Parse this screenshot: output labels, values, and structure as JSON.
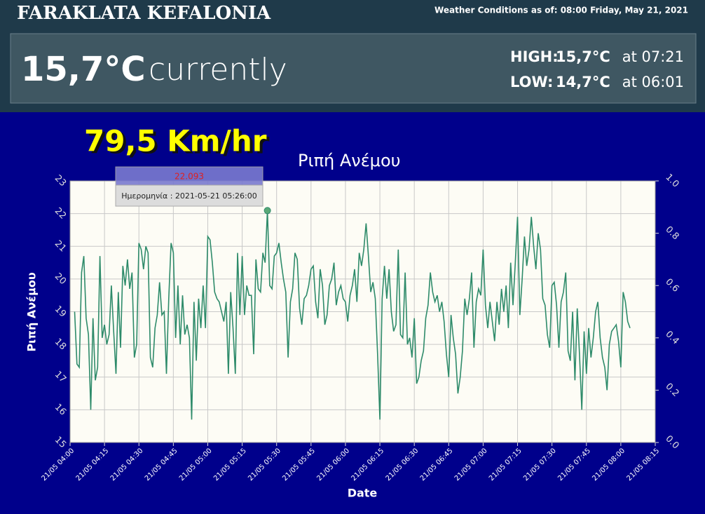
{
  "header": {
    "title": "FARAKLATA KEFALONIA",
    "as_of": "Weather Conditions as of: 08:00 Friday, May 21, 2021",
    "current_temp": "15,7°C",
    "current_label": "currently",
    "high_label": "HIGH:",
    "high_value": "15,7°C",
    "high_time": "at 07:21",
    "low_label": "LOW:",
    "low_value": "14,7°C",
    "low_time": "at 06:01"
  },
  "wind_gust": "79,5 Km/hr",
  "chart_data": {
    "type": "line",
    "title": "Ριπή Ανέμου",
    "y_label": "Ριπή Ανέμου",
    "x_label": "Date",
    "color": "#2e8b6a",
    "grid": true,
    "tooltip": {
      "value": "22.093",
      "date": "Ημερομηνία : 2021-05-21 05:26:00"
    },
    "xlim": [
      "21/05 04:00",
      "21/05 08:15"
    ],
    "xticks": [
      "21/05 04:00",
      "21/05 04:15",
      "21/05 04:30",
      "21/05 04:45",
      "21/05 05:00",
      "21/05 05:15",
      "21/05 05:30",
      "21/05 05:45",
      "21/05 06:00",
      "21/05 06:15",
      "21/05 06:30",
      "21/05 06:45",
      "21/05 07:00",
      "21/05 07:15",
      "21/05 07:30",
      "21/05 07:45",
      "21/05 08:00",
      "21/05 08:15"
    ],
    "ylim": [
      15,
      23
    ],
    "yticks": [
      15,
      16,
      17,
      18,
      19,
      20,
      21,
      22,
      23
    ],
    "y2lim": [
      0,
      1
    ],
    "y2ticks": [
      {
        "value": 0,
        "label": "0.0"
      },
      0.2,
      0.4,
      0.6,
      0.8,
      {
        "value": 1,
        "label": "1.0"
      }
    ],
    "x": [
      "21/05 04:02",
      "21/05 04:03",
      "21/05 04:04",
      "21/05 04:05",
      "21/05 04:06",
      "21/05 04:07",
      "21/05 04:08",
      "21/05 04:09",
      "21/05 04:10",
      "21/05 04:11",
      "21/05 04:12",
      "21/05 04:13",
      "21/05 04:14",
      "21/05 04:15",
      "21/05 04:16",
      "21/05 04:17",
      "21/05 04:18",
      "21/05 04:19",
      "21/05 04:20",
      "21/05 04:21",
      "21/05 04:22",
      "21/05 04:23",
      "21/05 04:24",
      "21/05 04:25",
      "21/05 04:26",
      "21/05 04:27",
      "21/05 04:28",
      "21/05 04:29",
      "21/05 04:30",
      "21/05 04:31",
      "21/05 04:32",
      "21/05 04:33",
      "21/05 04:34",
      "21/05 04:35",
      "21/05 04:36",
      "21/05 04:37",
      "21/05 04:38",
      "21/05 04:39",
      "21/05 04:40",
      "21/05 04:41",
      "21/05 04:42",
      "21/05 04:43",
      "21/05 04:44",
      "21/05 04:45",
      "21/05 04:46",
      "21/05 04:47",
      "21/05 04:48",
      "21/05 04:49",
      "21/05 04:50",
      "21/05 04:51",
      "21/05 04:52",
      "21/05 04:53",
      "21/05 04:54",
      "21/05 04:55",
      "21/05 04:56",
      "21/05 04:57",
      "21/05 04:58",
      "21/05 04:59",
      "21/05 05:00",
      "21/05 05:01",
      "21/05 05:02",
      "21/05 05:03",
      "21/05 05:04",
      "21/05 05:05",
      "21/05 05:06",
      "21/05 05:07",
      "21/05 05:08",
      "21/05 05:09",
      "21/05 05:10",
      "21/05 05:11",
      "21/05 05:12",
      "21/05 05:13",
      "21/05 05:14",
      "21/05 05:15",
      "21/05 05:16",
      "21/05 05:17",
      "21/05 05:18",
      "21/05 05:19",
      "21/05 05:20",
      "21/05 05:21",
      "21/05 05:22",
      "21/05 05:23",
      "21/05 05:24",
      "21/05 05:25",
      "21/05 05:26",
      "21/05 05:27",
      "21/05 05:28",
      "21/05 05:29",
      "21/05 05:30",
      "21/05 05:31",
      "21/05 05:32",
      "21/05 05:33",
      "21/05 05:34",
      "21/05 05:35",
      "21/05 05:36",
      "21/05 05:37",
      "21/05 05:38",
      "21/05 05:39",
      "21/05 05:40",
      "21/05 05:41",
      "21/05 05:42",
      "21/05 05:43",
      "21/05 05:44",
      "21/05 05:45",
      "21/05 05:46",
      "21/05 05:47",
      "21/05 05:48",
      "21/05 05:49",
      "21/05 05:50",
      "21/05 05:51",
      "21/05 05:52",
      "21/05 05:53",
      "21/05 05:54",
      "21/05 05:55",
      "21/05 05:56",
      "21/05 05:57",
      "21/05 05:58",
      "21/05 05:59",
      "21/05 06:00",
      "21/05 06:01",
      "21/05 06:02",
      "21/05 06:03",
      "21/05 06:04",
      "21/05 06:05",
      "21/05 06:06",
      "21/05 06:07",
      "21/05 06:08",
      "21/05 06:09",
      "21/05 06:10",
      "21/05 06:11",
      "21/05 06:12",
      "21/05 06:13",
      "21/05 06:14",
      "21/05 06:15",
      "21/05 06:16",
      "21/05 06:17",
      "21/05 06:18",
      "21/05 06:19",
      "21/05 06:20",
      "21/05 06:21",
      "21/05 06:22",
      "21/05 06:23",
      "21/05 06:24",
      "21/05 06:25",
      "21/05 06:26",
      "21/05 06:27",
      "21/05 06:28",
      "21/05 06:29",
      "21/05 06:30",
      "21/05 06:31",
      "21/05 06:32",
      "21/05 06:33",
      "21/05 06:34",
      "21/05 06:35",
      "21/05 06:36",
      "21/05 06:37",
      "21/05 06:38",
      "21/05 06:39",
      "21/05 06:40",
      "21/05 06:41",
      "21/05 06:42",
      "21/05 06:43",
      "21/05 06:44",
      "21/05 06:45",
      "21/05 06:46",
      "21/05 06:47",
      "21/05 06:48",
      "21/05 06:49",
      "21/05 06:50",
      "21/05 06:51",
      "21/05 06:52",
      "21/05 06:53",
      "21/05 06:54",
      "21/05 06:55",
      "21/05 06:56",
      "21/05 06:57",
      "21/05 06:58",
      "21/05 06:59",
      "21/05 07:00",
      "21/05 07:01",
      "21/05 07:02",
      "21/05 07:03",
      "21/05 07:04",
      "21/05 07:05",
      "21/05 07:06",
      "21/05 07:07",
      "21/05 07:08",
      "21/05 07:09",
      "21/05 07:10",
      "21/05 07:11",
      "21/05 07:12",
      "21/05 07:13",
      "21/05 07:14",
      "21/05 07:15",
      "21/05 07:16",
      "21/05 07:17",
      "21/05 07:18",
      "21/05 07:19",
      "21/05 07:20",
      "21/05 07:21",
      "21/05 07:22",
      "21/05 07:23",
      "21/05 07:24",
      "21/05 07:25",
      "21/05 07:26",
      "21/05 07:27",
      "21/05 07:28",
      "21/05 07:29",
      "21/05 07:30",
      "21/05 07:31",
      "21/05 07:32",
      "21/05 07:33",
      "21/05 07:34",
      "21/05 07:35",
      "21/05 07:36",
      "21/05 07:37",
      "21/05 07:38",
      "21/05 07:39",
      "21/05 07:40",
      "21/05 07:41",
      "21/05 07:42",
      "21/05 07:43",
      "21/05 07:44",
      "21/05 07:45",
      "21/05 07:46",
      "21/05 07:47",
      "21/05 07:48",
      "21/05 07:49",
      "21/05 07:50",
      "21/05 07:51",
      "21/05 07:52",
      "21/05 07:53",
      "21/05 07:54",
      "21/05 07:55",
      "21/05 07:56",
      "21/05 07:57",
      "21/05 07:58",
      "21/05 07:59",
      "21/05 08:00",
      "21/05 08:01",
      "21/05 08:02",
      "21/05 08:03",
      "21/05 08:04"
    ],
    "values": [
      19.0,
      17.4,
      17.3,
      20.2,
      20.7,
      18.8,
      18.3,
      16.0,
      18.8,
      16.9,
      17.3,
      20.7,
      18.2,
      18.6,
      18.0,
      18.3,
      19.8,
      18.4,
      17.1,
      19.6,
      17.9,
      20.4,
      19.8,
      20.6,
      19.7,
      20.2,
      17.6,
      18.0,
      21.1,
      20.9,
      20.3,
      21.0,
      20.8,
      17.6,
      17.3,
      18.5,
      18.9,
      19.9,
      18.9,
      19.0,
      17.1,
      19.4,
      21.1,
      20.8,
      18.2,
      19.8,
      18.0,
      19.5,
      18.3,
      18.6,
      18.2,
      15.7,
      19.3,
      17.5,
      19.4,
      18.5,
      19.8,
      18.5,
      21.3,
      21.2,
      20.5,
      19.6,
      19.4,
      19.3,
      19.0,
      18.7,
      19.3,
      17.1,
      19.6,
      18.5,
      17.1,
      20.8,
      18.9,
      20.7,
      18.9,
      19.8,
      19.5,
      19.5,
      17.7,
      20.6,
      19.7,
      19.6,
      20.8,
      20.5,
      22.093,
      19.8,
      19.7,
      20.7,
      20.8,
      21.1,
      20.5,
      20.0,
      19.6,
      17.6,
      19.3,
      19.7,
      20.8,
      20.6,
      19.1,
      18.6,
      19.4,
      19.5,
      19.8,
      20.3,
      20.4,
      19.3,
      18.8,
      20.3,
      19.8,
      18.6,
      18.9,
      19.8,
      20.0,
      20.5,
      19.2,
      19.6,
      19.8,
      19.4,
      19.3,
      18.7,
      19.5,
      19.8,
      20.3,
      19.3,
      20.8,
      20.4,
      20.9,
      21.7,
      20.7,
      19.6,
      19.9,
      19.4,
      17.7,
      15.7,
      19.4,
      20.4,
      19.4,
      20.3,
      19.0,
      18.4,
      18.6,
      20.9,
      18.3,
      18.2,
      20.2,
      18.0,
      18.2,
      17.6,
      18.8,
      16.8,
      17.0,
      17.5,
      17.8,
      18.8,
      19.2,
      20.2,
      19.6,
      19.3,
      19.5,
      19.0,
      19.3,
      18.7,
      17.7,
      17.0,
      18.9,
      18.2,
      17.7,
      16.5,
      17.0,
      17.8,
      19.4,
      18.9,
      19.4,
      20.2,
      17.9,
      19.3,
      19.7,
      19.5,
      20.9,
      19.2,
      18.5,
      19.3,
      18.7,
      18.1,
      19.3,
      18.6,
      19.7,
      19.0,
      19.8,
      18.5,
      20.5,
      19.2,
      20.5,
      21.9,
      18.9,
      20.0,
      21.3,
      20.4,
      20.9,
      21.9,
      21.0,
      20.3,
      21.4,
      20.9,
      19.4,
      19.2,
      18.3,
      17.9,
      19.8,
      19.9,
      19.2,
      17.9,
      19.3,
      19.6,
      20.2,
      17.8,
      17.5,
      19.0,
      16.9,
      19.1,
      17.7,
      16.0,
      18.4,
      17.1,
      18.5,
      17.6,
      18.2,
      19.0,
      19.3,
      18.2,
      17.6,
      17.3,
      16.6,
      18.0,
      18.4,
      18.5,
      18.6,
      18.1,
      17.3,
      19.6,
      19.3,
      18.7,
      18.5
    ]
  }
}
